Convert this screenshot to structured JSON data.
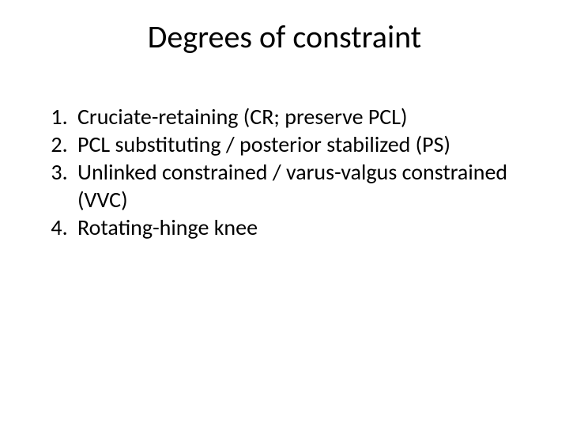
{
  "slide": {
    "title": "Degrees of constraint",
    "title_fontsize": 40,
    "title_color": "#000000",
    "background_color": "#ffffff",
    "body_fontsize": 28,
    "body_color": "#000000",
    "list": {
      "type": "ordered",
      "items": [
        "Cruciate-retaining (CR; preserve PCL)",
        "PCL substituting / posterior stabilized (PS)",
        "Unlinked constrained / varus-valgus constrained (VVC)",
        "Rotating-hinge knee"
      ]
    }
  }
}
